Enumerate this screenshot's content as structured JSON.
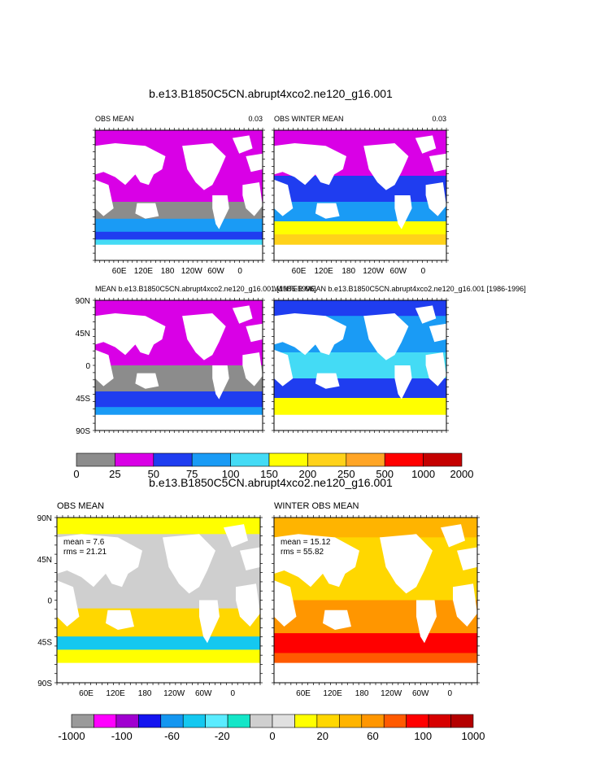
{
  "figure": {
    "top_title": "b.e13.B1850C5CN.abrupt4xco2.ne120_g16.001",
    "bottom_title": "b.e13.B1850C5CN.abrupt4xco2.ne120_g16.001"
  },
  "chart_data": [
    {
      "type": "heatmap",
      "name": "OBS MEAN",
      "title": "OBS MEAN",
      "right_label": "0.03",
      "projection": "cylindrical-equidistant, centered on 180",
      "x_ticks": [
        "60E",
        "120E",
        "180",
        "120W",
        "60W",
        "0"
      ],
      "y_ticks": [],
      "dominant_bins": [
        "0-25",
        "25-50",
        "50-100",
        "100-150"
      ]
    },
    {
      "type": "heatmap",
      "name": "OBS WINTER MEAN",
      "title": "OBS WINTER MEAN",
      "right_label": "0.03",
      "x_ticks": [
        "60E",
        "120E",
        "180",
        "120W",
        "60W",
        "0"
      ],
      "y_ticks": [],
      "dominant_bins": [
        "0-25",
        "25-50",
        "50-100",
        "100-250"
      ]
    },
    {
      "type": "heatmap",
      "name": "MEAN model",
      "title": "MEAN b.e13.B1850C5CN.abrupt4xco2.ne120_g16.001 [1986-1996]",
      "y_ticks": [
        "90N",
        "45N",
        "0",
        "45S",
        "90S"
      ],
      "dominant_bins": [
        "0-25",
        "25-50",
        "50-100"
      ]
    },
    {
      "type": "heatmap",
      "name": "WINTER MEAN model",
      "title": "WINTER MEAN b.e13.B1850C5CN.abrupt4xco2.ne120_g16.001 [1986-1996]",
      "y_ticks": [],
      "dominant_bins": [
        "50-100",
        "100-150",
        "150-250"
      ]
    },
    {
      "type": "heatmap",
      "name": "difference OBS MEAN",
      "title": "OBS MEAN",
      "stats": [
        "mean = 7.6",
        "rms = 21.21"
      ],
      "x_ticks": [
        "60E",
        "120E",
        "180",
        "120W",
        "60W",
        "0"
      ],
      "y_ticks": [
        "90N",
        "45N",
        "0",
        "45S",
        "90S"
      ],
      "dominant_bins": [
        "0-20",
        "20-60",
        "-20-0",
        "-100--60"
      ]
    },
    {
      "type": "heatmap",
      "name": "difference WINTER OBS MEAN",
      "title": "WINTER OBS MEAN",
      "stats": [
        "mean = 15.12",
        "rms = 55.82"
      ],
      "x_ticks": [
        "60E",
        "120E",
        "180",
        "120W",
        "60W",
        "0"
      ],
      "y_ticks": [],
      "dominant_bins": [
        "20-60",
        "60-100",
        "100-1000",
        "-20-0"
      ]
    }
  ],
  "colorbar_top": {
    "labels": [
      "0",
      "25",
      "50",
      "75",
      "100",
      "150",
      "200",
      "250",
      "500",
      "1000",
      "2000"
    ],
    "colors": [
      "#8c8c8c",
      "#d900e6",
      "#1f3df0",
      "#1a9bf5",
      "#44dbf5",
      "#ffff00",
      "#ffd21a",
      "#ffa526",
      "#ff0000",
      "#c40000"
    ]
  },
  "colorbar_bottom": {
    "labels": [
      "-1000",
      "-100",
      "-60",
      "-20",
      "0",
      "20",
      "60",
      "100",
      "1000"
    ],
    "colors": [
      "#9a9a9a",
      "#ff00ff",
      "#a000d0",
      "#1414f0",
      "#1496f0",
      "#14c8f0",
      "#5aecff",
      "#14e6c8",
      "#cfcfcf",
      "#e0e0e0",
      "#ffff00",
      "#ffd700",
      "#ffb400",
      "#ff9600",
      "#ff5a00",
      "#ff0000",
      "#d70000",
      "#b40000"
    ]
  }
}
